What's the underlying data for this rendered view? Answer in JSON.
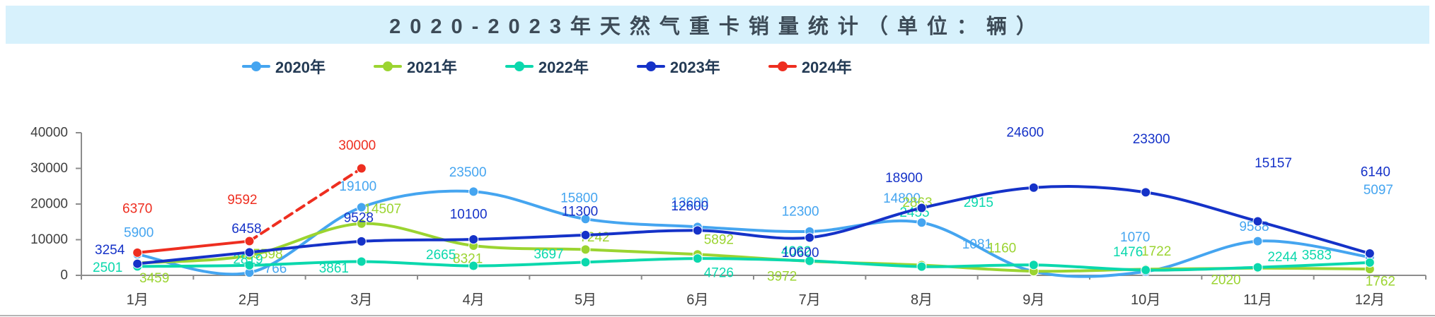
{
  "title": "2020-2023年天然气重卡销量统计（单位：辆）",
  "banner": {
    "background": "#d7f1fc",
    "text_color": "#3d4b57"
  },
  "axis": {
    "line_color": "#8c8c8c",
    "tick_text_color": "#3f3f3f"
  },
  "chart_data": {
    "type": "line",
    "title": "2020-2023年天然气重卡销量统计（单位：辆）",
    "unit": "辆",
    "categories": [
      "1月",
      "2月",
      "3月",
      "4月",
      "5月",
      "6月",
      "7月",
      "8月",
      "9月",
      "10月",
      "11月",
      "12月"
    ],
    "yticks": [
      0,
      10000,
      20000,
      30000,
      40000
    ],
    "ylim": [
      0,
      40000
    ],
    "grid": false,
    "legend_position": "top",
    "series": [
      {
        "name": "2020年",
        "color": "#45a5f0",
        "values": [
          5900,
          766,
          19100,
          23500,
          15800,
          13600,
          12300,
          14800,
          1081,
          1070,
          9588,
          5097
        ],
        "label_offsets": {
          "0": [
            2,
            -30
          ],
          "1": [
            37,
            -5
          ],
          "2": [
            -5,
            -29
          ],
          "3": [
            -8,
            -27
          ],
          "4": [
            -9,
            -29
          ],
          "5": [
            -11,
            -34
          ],
          "6": [
            -13,
            -28
          ],
          "7": [
            -28,
            -34
          ],
          "8": [
            -80,
            -38
          ],
          "9": [
            -15,
            -48
          ],
          "10": [
            -5,
            -20
          ],
          "11": [
            12,
            -95
          ]
        }
      },
      {
        "name": "2021年",
        "color": "#9bd431",
        "values": [
          3459,
          5598,
          14507,
          8321,
          7242,
          5892,
          3972,
          2863,
          1160,
          1722,
          2020,
          1762
        ],
        "label_offsets": {
          "0": [
            24,
            22
          ],
          "1": [
            26,
            -1
          ],
          "2": [
            30,
            -20
          ],
          "3": [
            -8,
            19
          ],
          "4": [
            13,
            -17
          ],
          "5": [
            30,
            -20
          ],
          "6": [
            -39,
            22
          ],
          "7": [
            -6,
            -88
          ],
          "8": [
            -45,
            -32
          ],
          "9": [
            15,
            -25
          ],
          "10": [
            -45,
            17
          ],
          "11": [
            15,
            18
          ]
        }
      },
      {
        "name": "2022年",
        "color": "#0bd8ad",
        "values": [
          2501,
          2819,
          3861,
          2665,
          3697,
          4726,
          4062,
          2455,
          2915,
          1476,
          2244,
          3583
        ],
        "label_offsets": {
          "0": [
            -42,
            2
          ],
          "1": [
            -2,
            -8
          ],
          "2": [
            -39,
            10
          ],
          "3": [
            -46,
            -15
          ],
          "4": [
            -52,
            -11
          ],
          "5": [
            30,
            21
          ],
          "6": [
            -19,
            -13
          ],
          "7": [
            -10,
            -76
          ],
          "8": [
            -78,
            -88
          ],
          "9": [
            -25,
            -25
          ],
          "10": [
            35,
            -14
          ],
          "11": [
            -75,
            -10
          ]
        }
      },
      {
        "name": "2023年",
        "color": "#1532c8",
        "values": [
          3254,
          6458,
          9528,
          10100,
          11300,
          12600,
          10600,
          18900,
          24600,
          23300,
          15157,
          6140
        ],
        "label_offsets": {
          "0": [
            -39,
            -19
          ],
          "1": [
            -4,
            -33
          ],
          "2": [
            -4,
            -33
          ],
          "3": [
            -7,
            -35
          ],
          "4": [
            -8,
            -33
          ],
          "5": [
            -11,
            -34
          ],
          "6": [
            -13,
            22
          ],
          "7": [
            -25,
            -42
          ],
          "8": [
            -12,
            -78
          ],
          "9": [
            8,
            -75
          ],
          "10": [
            22,
            -82
          ],
          "11": [
            8,
            -115
          ]
        }
      },
      {
        "name": "2024年",
        "color": "#ee2e20",
        "values": [
          6370,
          9592,
          30000,
          null,
          null,
          null,
          null,
          null,
          null,
          null,
          null,
          null
        ],
        "dashed_from": 1,
        "label_offsets": {
          "0": [
            0,
            -62
          ],
          "1": [
            -10,
            -58
          ],
          "2": [
            -6,
            -32
          ]
        }
      }
    ]
  }
}
